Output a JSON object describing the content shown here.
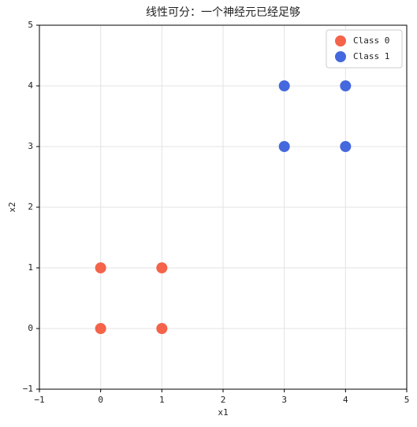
{
  "chart_data": {
    "type": "scatter",
    "title": "线性可分：一个神经元已经足够",
    "x_label": "x1",
    "y_label": "x2",
    "series": [
      {
        "name": "Class 0",
        "color": "#f4634a",
        "x": [
          0,
          0,
          1,
          1
        ],
        "values": [
          0,
          1,
          0,
          1
        ]
      },
      {
        "name": "Class 1",
        "color": "#4468dd",
        "x": [
          3,
          3,
          4,
          4
        ],
        "values": [
          3,
          4,
          3,
          4
        ]
      }
    ],
    "xlim": [
      -1,
      5
    ],
    "ylim": [
      -1,
      5
    ],
    "xticks": [
      {
        "value": -1,
        "label": "−1"
      },
      0,
      1,
      2,
      3,
      4,
      5
    ],
    "yticks": [
      {
        "value": -1,
        "label": "−1"
      },
      0,
      1,
      2,
      3,
      4,
      5
    ],
    "grid": true,
    "legend": "upper right"
  }
}
